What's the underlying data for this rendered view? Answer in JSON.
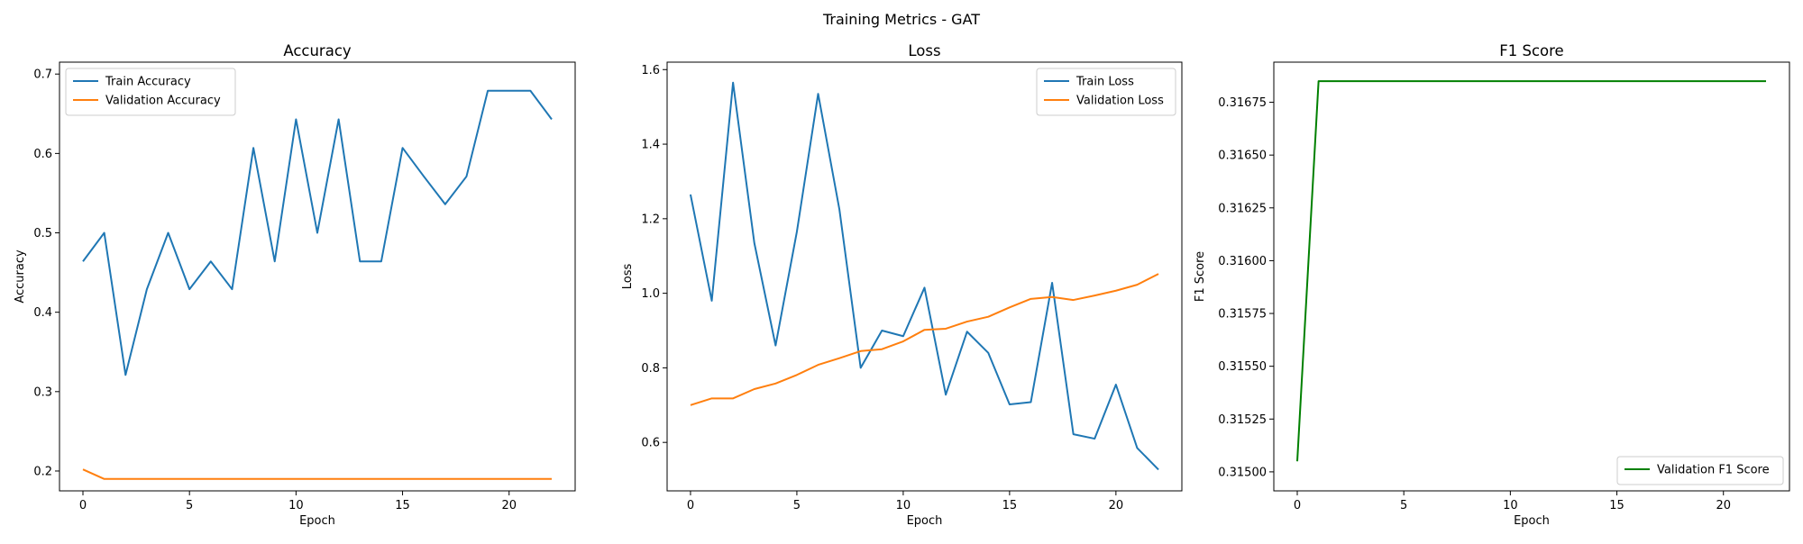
{
  "figure": {
    "suptitle": "Training Metrics - GAT"
  },
  "chart_data": [
    {
      "type": "line",
      "title": "Accuracy",
      "xlabel": "Epoch",
      "ylabel": "Accuracy",
      "xlim": [
        -1.1,
        23.1
      ],
      "ylim": [
        0.175,
        0.715
      ],
      "xticks": [
        0,
        5,
        10,
        15,
        20
      ],
      "yticks": [
        0.2,
        0.3,
        0.4,
        0.5,
        0.6,
        0.7
      ],
      "ytick_labels": [
        "0.2",
        "0.3",
        "0.4",
        "0.5",
        "0.6",
        "0.7"
      ],
      "legend_loc": "upper left",
      "series": [
        {
          "name": "Train Accuracy",
          "color": "#1f77b4",
          "values": [
            0.464,
            0.5,
            0.321,
            0.429,
            0.5,
            0.429,
            0.464,
            0.429,
            0.607,
            0.464,
            0.643,
            0.5,
            0.643,
            0.464,
            0.464,
            0.607,
            0.571,
            0.536,
            0.571,
            0.679,
            0.679,
            0.679,
            0.643
          ]
        },
        {
          "name": "Validation Accuracy",
          "color": "#ff7f0e",
          "values": [
            0.202,
            0.19,
            0.19,
            0.19,
            0.19,
            0.19,
            0.19,
            0.19,
            0.19,
            0.19,
            0.19,
            0.19,
            0.19,
            0.19,
            0.19,
            0.19,
            0.19,
            0.19,
            0.19,
            0.19,
            0.19,
            0.19,
            0.19
          ]
        }
      ]
    },
    {
      "type": "line",
      "title": "Loss",
      "xlabel": "Epoch",
      "ylabel": "Loss",
      "xlim": [
        -1.1,
        23.1
      ],
      "ylim": [
        0.47,
        1.62
      ],
      "xticks": [
        0,
        5,
        10,
        15,
        20
      ],
      "yticks": [
        0.6,
        0.8,
        1.0,
        1.2,
        1.4,
        1.6
      ],
      "ytick_labels": [
        "0.6",
        "0.8",
        "1.0",
        "1.2",
        "1.4",
        "1.6"
      ],
      "legend_loc": "upper right",
      "series": [
        {
          "name": "Train Loss",
          "color": "#1f77b4",
          "values": [
            1.265,
            0.98,
            1.565,
            1.135,
            0.86,
            1.165,
            1.535,
            1.225,
            0.8,
            0.9,
            0.885,
            1.015,
            0.728,
            0.897,
            0.84,
            0.702,
            0.708,
            1.028,
            0.622,
            0.61,
            0.755,
            0.585,
            0.527
          ]
        },
        {
          "name": "Validation Loss",
          "color": "#ff7f0e",
          "values": [
            0.7,
            0.718,
            0.718,
            0.743,
            0.758,
            0.781,
            0.808,
            0.826,
            0.845,
            0.85,
            0.871,
            0.902,
            0.905,
            0.924,
            0.937,
            0.962,
            0.985,
            0.99,
            0.982,
            0.994,
            1.007,
            1.023,
            1.052
          ]
        }
      ]
    },
    {
      "type": "line",
      "title": "F1 Score",
      "xlabel": "Epoch",
      "ylabel": "F1 Score",
      "xlim": [
        -1.1,
        23.1
      ],
      "ylim": [
        0.31491,
        0.31694
      ],
      "xticks": [
        0,
        5,
        10,
        15,
        20
      ],
      "yticks": [
        0.315,
        0.31525,
        0.3155,
        0.31575,
        0.316,
        0.31625,
        0.3165,
        0.31675
      ],
      "ytick_labels": [
        "0.31500",
        "0.31525",
        "0.31550",
        "0.31575",
        "0.31600",
        "0.31625",
        "0.31650",
        "0.31675"
      ],
      "legend_loc": "lower right",
      "series": [
        {
          "name": "Validation F1 Score",
          "color": "#008000",
          "values": [
            0.31505,
            0.31685,
            0.31685,
            0.31685,
            0.31685,
            0.31685,
            0.31685,
            0.31685,
            0.31685,
            0.31685,
            0.31685,
            0.31685,
            0.31685,
            0.31685,
            0.31685,
            0.31685,
            0.31685,
            0.31685,
            0.31685,
            0.31685,
            0.31685,
            0.31685,
            0.31685
          ]
        }
      ]
    }
  ]
}
